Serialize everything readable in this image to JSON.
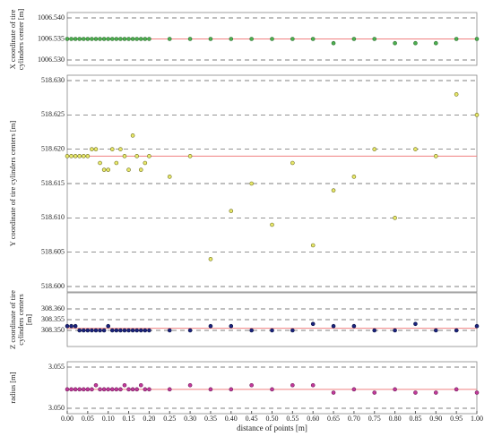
{
  "chart_data": [
    {
      "type": "scatter",
      "ylabel": "X coordinate of tire cylinders center [m]",
      "x": [
        0,
        0.01,
        0.02,
        0.03,
        0.04,
        0.05,
        0.06,
        0.07,
        0.08,
        0.09,
        0.1,
        0.11,
        0.12,
        0.13,
        0.14,
        0.15,
        0.16,
        0.17,
        0.18,
        0.19,
        0.2,
        0.25,
        0.3,
        0.35,
        0.4,
        0.45,
        0.5,
        0.55,
        0.6,
        0.65,
        0.7,
        0.75,
        0.8,
        0.85,
        0.9,
        0.95,
        1
      ],
      "values": [
        1006.535,
        1006.535,
        1006.535,
        1006.535,
        1006.535,
        1006.535,
        1006.535,
        1006.535,
        1006.535,
        1006.535,
        1006.535,
        1006.535,
        1006.535,
        1006.535,
        1006.535,
        1006.535,
        1006.535,
        1006.535,
        1006.535,
        1006.535,
        1006.535,
        1006.535,
        1006.535,
        1006.535,
        1006.535,
        1006.535,
        1006.535,
        1006.535,
        1006.535,
        1006.534,
        1006.535,
        1006.535,
        1006.534,
        1006.534,
        1006.534,
        1006.535,
        1006.535
      ],
      "color": "#4caf50",
      "edgecolor": "#2e6b2e",
      "hline": 1006.535,
      "hline_color": "#f08080",
      "xlim": [
        0,
        1
      ],
      "ylim": [
        1006.53,
        1006.54
      ],
      "yticks": [
        {
          "value": 1006.53,
          "label": "1006.530"
        },
        {
          "value": 1006.535,
          "label": "1006.535"
        },
        {
          "value": 1006.54,
          "label": "1006.540"
        }
      ],
      "grid": true
    },
    {
      "type": "scatter",
      "ylabel": "Y coordinate of tire cylinders centers [m]",
      "x": [
        0,
        0.01,
        0.02,
        0.03,
        0.04,
        0.05,
        0.06,
        0.07,
        0.08,
        0.09,
        0.1,
        0.11,
        0.12,
        0.13,
        0.14,
        0.15,
        0.16,
        0.17,
        0.18,
        0.19,
        0.2,
        0.25,
        0.3,
        0.35,
        0.4,
        0.45,
        0.5,
        0.55,
        0.6,
        0.65,
        0.7,
        0.75,
        0.8,
        0.85,
        0.9,
        0.95,
        1
      ],
      "values": [
        518.619,
        518.619,
        518.619,
        518.619,
        518.619,
        518.619,
        518.62,
        518.62,
        518.618,
        518.617,
        518.617,
        518.62,
        518.618,
        518.62,
        518.619,
        518.617,
        518.622,
        518.619,
        518.617,
        518.618,
        518.619,
        518.616,
        518.619,
        518.604,
        518.611,
        518.615,
        518.609,
        518.618,
        518.606,
        518.614,
        518.616,
        518.62,
        518.61,
        518.62,
        518.619,
        518.628,
        518.625
      ],
      "color": "#e8e86a",
      "edgecolor": "#6b6b1e",
      "hline": 518.619,
      "hline_color": "#f08080",
      "xlim": [
        0,
        1
      ],
      "ylim": [
        518.6,
        518.63
      ],
      "yticks": [
        {
          "value": 518.6,
          "label": "518.600"
        },
        {
          "value": 518.605,
          "label": "518.605"
        },
        {
          "value": 518.61,
          "label": "518.610"
        },
        {
          "value": 518.615,
          "label": "518.615"
        },
        {
          "value": 518.62,
          "label": "518.620"
        },
        {
          "value": 518.625,
          "label": "518.625"
        },
        {
          "value": 518.63,
          "label": "518.630"
        }
      ],
      "grid": true
    },
    {
      "type": "scatter",
      "ylabel": "Z coordinate of tire cylinders centers [m]",
      "x": [
        0,
        0.01,
        0.02,
        0.03,
        0.04,
        0.05,
        0.06,
        0.07,
        0.08,
        0.09,
        0.1,
        0.11,
        0.12,
        0.13,
        0.14,
        0.15,
        0.16,
        0.17,
        0.18,
        0.19,
        0.2,
        0.25,
        0.3,
        0.35,
        0.4,
        0.45,
        0.5,
        0.55,
        0.6,
        0.65,
        0.7,
        0.75,
        0.8,
        0.85,
        0.9,
        0.95,
        1
      ],
      "values": [
        308.352,
        308.352,
        308.352,
        308.35,
        308.35,
        308.35,
        308.35,
        308.35,
        308.35,
        308.35,
        308.352,
        308.35,
        308.35,
        308.35,
        308.35,
        308.35,
        308.35,
        308.35,
        308.35,
        308.35,
        308.35,
        308.35,
        308.35,
        308.352,
        308.352,
        308.35,
        308.35,
        308.35,
        308.353,
        308.352,
        308.352,
        308.35,
        308.35,
        308.353,
        308.35,
        308.35,
        308.352
      ],
      "color": "#1a237e",
      "edgecolor": "#0d1240",
      "hline": 308.351,
      "hline_color": "#f08080",
      "xlim": [
        0,
        1
      ],
      "ylim": [
        308.345,
        308.365
      ],
      "yticks": [
        {
          "value": 308.35,
          "label": "308.350"
        },
        {
          "value": 308.355,
          "label": "308.355"
        },
        {
          "value": 308.36,
          "label": "308.360"
        }
      ],
      "grid": true
    },
    {
      "type": "scatter",
      "ylabel": "radius [m]",
      "xlabel": "distance of points [m]",
      "x": [
        0,
        0.01,
        0.02,
        0.03,
        0.04,
        0.05,
        0.06,
        0.07,
        0.08,
        0.09,
        0.1,
        0.11,
        0.12,
        0.13,
        0.14,
        0.15,
        0.16,
        0.17,
        0.18,
        0.19,
        0.2,
        0.25,
        0.3,
        0.35,
        0.4,
        0.45,
        0.5,
        0.55,
        0.6,
        0.65,
        0.7,
        0.75,
        0.8,
        0.85,
        0.9,
        0.95,
        1
      ],
      "values": [
        3.0523,
        3.0523,
        3.0523,
        3.0523,
        3.0523,
        3.0523,
        3.0523,
        3.0528,
        3.0523,
        3.0523,
        3.0523,
        3.0523,
        3.0523,
        3.0523,
        3.0528,
        3.0523,
        3.0523,
        3.0523,
        3.0528,
        3.0523,
        3.0523,
        3.0523,
        3.0528,
        3.0523,
        3.0523,
        3.0528,
        3.0523,
        3.0528,
        3.0528,
        3.0519,
        3.0523,
        3.0519,
        3.0523,
        3.0519,
        3.0519,
        3.0523,
        3.0519
      ],
      "color": "#c2399b",
      "edgecolor": "#6e1f57",
      "hline": 3.0523,
      "hline_color": "#f08080",
      "xlim": [
        0,
        1
      ],
      "ylim": [
        3.05,
        3.055
      ],
      "yticks": [
        {
          "value": 3.05,
          "label": "3.050"
        },
        {
          "value": 3.055,
          "label": "3.055"
        }
      ],
      "xticks": [
        {
          "value": 0,
          "label": "0.00"
        },
        {
          "value": 0.05,
          "label": "0.05"
        },
        {
          "value": 0.1,
          "label": "0.10"
        },
        {
          "value": 0.15,
          "label": "0.15"
        },
        {
          "value": 0.2,
          "label": "0.20"
        },
        {
          "value": 0.25,
          "label": "0.25"
        },
        {
          "value": 0.3,
          "label": "0.30"
        },
        {
          "value": 0.35,
          "label": "0.35"
        },
        {
          "value": 0.4,
          "label": "0.40"
        },
        {
          "value": 0.45,
          "label": "0.45"
        },
        {
          "value": 0.5,
          "label": "0.50"
        },
        {
          "value": 0.55,
          "label": "0.55"
        },
        {
          "value": 0.6,
          "label": "0.60"
        },
        {
          "value": 0.65,
          "label": "0.65"
        },
        {
          "value": 0.7,
          "label": "0.70"
        },
        {
          "value": 0.75,
          "label": "0.75"
        },
        {
          "value": 0.8,
          "label": "0.80"
        },
        {
          "value": 0.85,
          "label": "0.85"
        },
        {
          "value": 0.9,
          "label": "0.90"
        },
        {
          "value": 0.95,
          "label": "0.95"
        },
        {
          "value": 1,
          "label": "1.00"
        }
      ],
      "grid": true
    }
  ]
}
